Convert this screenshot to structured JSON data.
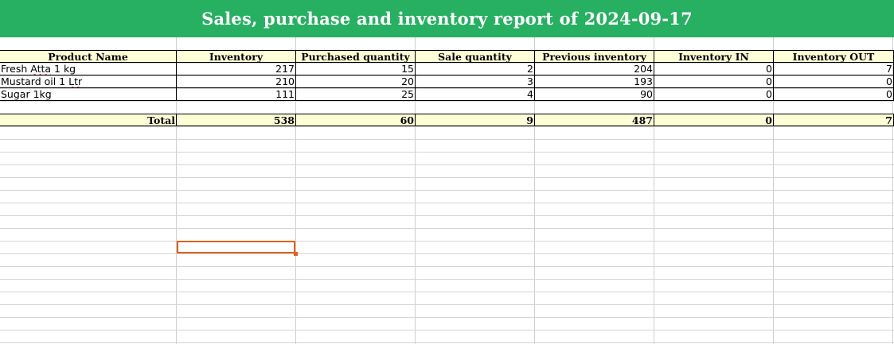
{
  "report": {
    "title": "Sales, purchase and inventory report of 2024-09-17"
  },
  "table": {
    "headers": [
      "Product Name",
      "Inventory",
      "Purchased quantity",
      "Sale quantity",
      "Previous inventory",
      "Inventory IN",
      "Inventory OUT"
    ],
    "rows": [
      {
        "name": "Fresh Atta 1 kg",
        "inventory": "217",
        "purchased": "15",
        "sale": "2",
        "previous": "204",
        "in": "0",
        "out": "7"
      },
      {
        "name": "Mustard oil 1 Ltr",
        "inventory": "210",
        "purchased": "20",
        "sale": "3",
        "previous": "193",
        "in": "0",
        "out": "0"
      },
      {
        "name": "Sugar 1kg",
        "inventory": "111",
        "purchased": "25",
        "sale": "4",
        "previous": "90",
        "in": "0",
        "out": "0"
      }
    ],
    "totals": {
      "label": "Total",
      "inventory": "538",
      "purchased": "60",
      "sale": "9",
      "previous": "487",
      "in": "0",
      "out": "7"
    }
  },
  "colors": {
    "title_bar": "#28b062",
    "header_fill": "#ffffd7",
    "selection": "#e0611a"
  }
}
